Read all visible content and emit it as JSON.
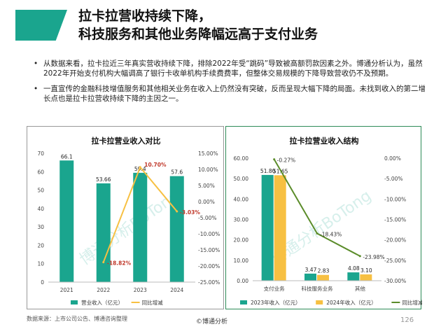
{
  "title": {
    "line1": "拉卡拉营收持续下降，",
    "line2": "科技服务和其他业务降幅远高于支付业务"
  },
  "bullets": [
    "从数据来看，拉卡拉近三年真实营收持续下降，排除2022年受“跳码”导致被高额罚款因素之外。博通分析认为，虽然2022年开始支付机构大幅调高了银行卡收单机构手续费费率，但整体交易规模的下降导致营收仍不及预期。",
    "一直宣传的金融科技增值服务和其他相关业务在收入上仍然没有突破，反而呈现大幅下降的局面。未找到收入的第二增长点也是拉卡拉营收持续下降的主因之一。"
  ],
  "source": "数据来源：上市公司公告、博通咨询整理",
  "brand": "©博通分析",
  "page_number": "126",
  "watermark": "博通分析BoTong",
  "chart_data": [
    {
      "type": "bar",
      "title": "拉卡拉营业收入对比",
      "categories": [
        "2021",
        "2022",
        "2023",
        "2024"
      ],
      "series": [
        {
          "name": "营业收入（亿元）",
          "kind": "bar",
          "axis": "left",
          "color": "#1aa58e",
          "values": [
            66.1,
            53.66,
            59.4,
            57.6
          ],
          "labels": [
            "66.1",
            "53.66",
            "59.4",
            "57.6"
          ]
        },
        {
          "name": "同比增减",
          "kind": "line",
          "axis": "right",
          "color": "#f7c042",
          "values": [
            null,
            -18.82,
            10.7,
            -3.03
          ],
          "labels": [
            "",
            "-18.82%",
            "10.70%",
            "-3.03%"
          ]
        }
      ],
      "ylim_left": [
        0,
        70
      ],
      "yticks_left": [
        "0",
        "10",
        "20",
        "30",
        "40",
        "50",
        "60",
        "70"
      ],
      "ylim_right": [
        -25,
        15
      ],
      "yticks_right": [
        "-25.00%",
        "-20.00%",
        "-15.00%",
        "-10.00%",
        "-5.00%",
        "0.00%",
        "5.00%",
        "10.00%",
        "15.00%"
      ],
      "legend_position": "bottom",
      "grid": false
    },
    {
      "type": "bar",
      "title": "拉卡拉营业收入结构",
      "categories": [
        "支付业务",
        "科技服务业务",
        "其他"
      ],
      "series": [
        {
          "name": "2023年收入（亿元）",
          "kind": "bar",
          "axis": "left",
          "color": "#1aa58e",
          "values": [
            51.8,
            3.47,
            4.08
          ],
          "labels": [
            "51.80",
            "3.47",
            "4.08"
          ]
        },
        {
          "name": "2024年收入（亿元）",
          "kind": "bar",
          "axis": "left",
          "color": "#f7c042",
          "values": [
            51.65,
            2.83,
            3.1
          ],
          "labels": [
            "51.65",
            "2.83",
            "3.10"
          ]
        },
        {
          "name": "同比增减",
          "kind": "line",
          "axis": "right",
          "color": "#5b8c2a",
          "values": [
            -0.27,
            -18.43,
            -23.98
          ],
          "labels": [
            "-0.27%",
            "-18.43%",
            "-23.98%"
          ]
        }
      ],
      "ylim_left": [
        0,
        60
      ],
      "yticks_left": [
        "0.00",
        "10.00",
        "20.00",
        "30.00",
        "40.00",
        "50.00",
        "60.00"
      ],
      "ylim_right": [
        -30,
        0
      ],
      "yticks_right": [
        "-30.00%",
        "-25.00%",
        "-20.00%",
        "-15.00%",
        "-10.00%",
        "-5.00%",
        "0.00%"
      ],
      "legend_position": "bottom",
      "grid": false
    }
  ]
}
